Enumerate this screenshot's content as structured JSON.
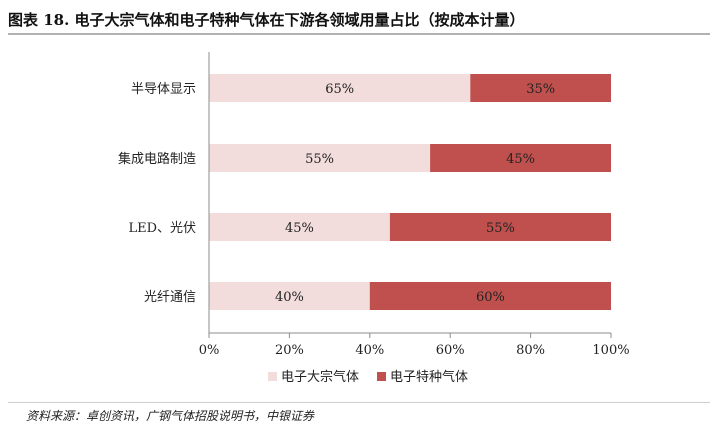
{
  "page_title": "图表 18. 电子大宗气体和电子特种气体在下游各领域用量占比（按成本计量）",
  "source_note": "资料来源：卓创资讯，广钢气体招股说明书，中银证券",
  "chart_data": {
    "type": "bar",
    "orientation": "horizontal",
    "stacked": true,
    "title": "",
    "xlabel": "",
    "ylabel": "",
    "categories": [
      "半导体显示",
      "集成电路制造",
      "LED、光伏",
      "光纤通信"
    ],
    "series": [
      {
        "name": "电子大宗气体",
        "color": "#f2dcdc",
        "values": [
          65,
          55,
          45,
          40
        ],
        "labels": [
          "65%",
          "55%",
          "45%",
          "40%"
        ]
      },
      {
        "name": "电子特种气体",
        "color": "#c0504d",
        "values": [
          35,
          45,
          55,
          60
        ],
        "labels": [
          "35%",
          "45%",
          "55%",
          "60%"
        ]
      }
    ],
    "xlim": [
      0,
      100
    ],
    "xticks": [
      0,
      20,
      40,
      60,
      80,
      100
    ],
    "xtick_labels": [
      "0%",
      "20%",
      "40%",
      "60%",
      "80%",
      "100%"
    ],
    "grid": false,
    "legend_position": "bottom"
  }
}
